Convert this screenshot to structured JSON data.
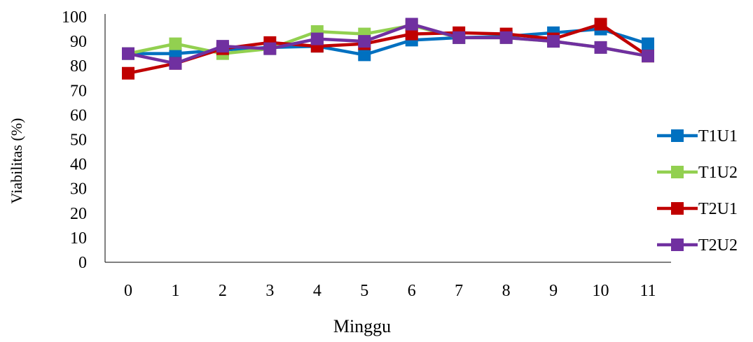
{
  "chart_data": {
    "type": "line",
    "xlabel": "Minggu",
    "ylabel": "Viabilitas (%)",
    "ylim": [
      0,
      100
    ],
    "y_ticks": [
      0,
      10,
      20,
      30,
      40,
      50,
      60,
      70,
      80,
      90,
      100
    ],
    "categories": [
      "0",
      "1",
      "2",
      "3",
      "4",
      "5",
      "6",
      "7",
      "8",
      "9",
      "10",
      "11"
    ],
    "grid": false,
    "legend_position": "right",
    "series": [
      {
        "name": "T1U1",
        "color": "#0070C0",
        "values": [
          85,
          85,
          86.5,
          87.5,
          88,
          84.5,
          90.5,
          91.5,
          92,
          93.5,
          95,
          89
        ]
      },
      {
        "name": "T1U2",
        "color": "#92D050",
        "values": [
          85,
          89,
          85,
          87,
          94,
          93,
          96.5,
          91.5,
          91.5,
          90,
          87.5,
          84
        ]
      },
      {
        "name": "T2U1",
        "color": "#C00000",
        "values": [
          77,
          81,
          87,
          89.5,
          88,
          89,
          93,
          93.5,
          93,
          91,
          97,
          84
        ]
      },
      {
        "name": "T2U2",
        "color": "#7030A0",
        "values": [
          85,
          81,
          88,
          87,
          91,
          90,
          97,
          91.5,
          91.5,
          90,
          87.5,
          84
        ]
      }
    ]
  }
}
